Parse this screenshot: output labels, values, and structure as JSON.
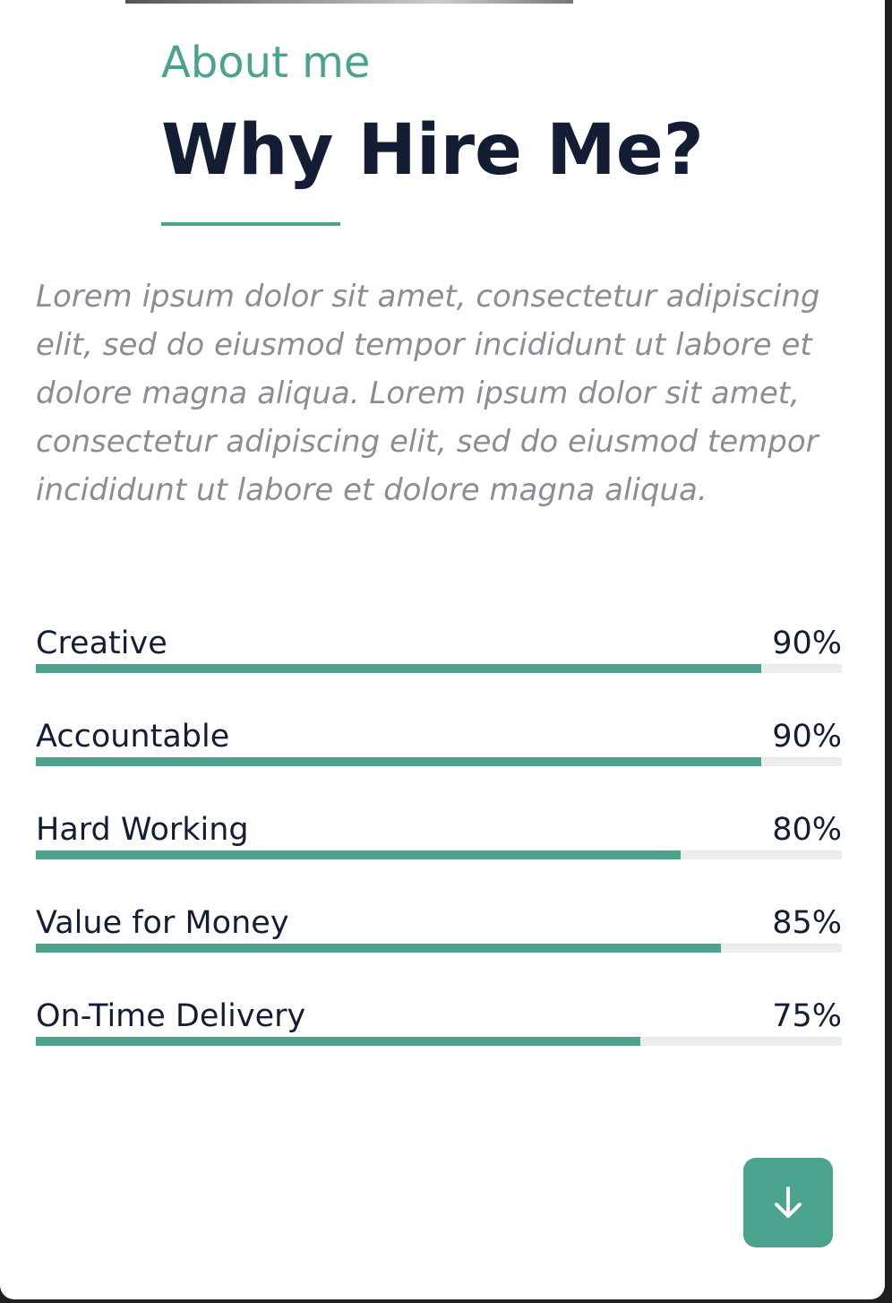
{
  "about": {
    "eyebrow": "About me",
    "headline": "Why Hire Me?",
    "intro": "Lorem ipsum dolor sit amet, consectetur adipiscing elit, sed do eiusmod tempor incididunt ut labore et dolore magna aliqua. Lorem ipsum dolor sit amet, consectetur adipiscing elit, sed do eiusmod tempor incididunt ut labore et dolore magna aliqua."
  },
  "skills": [
    {
      "name": "Creative",
      "percent_label": "90%",
      "value": 90
    },
    {
      "name": "Accountable",
      "percent_label": "90%",
      "value": 90
    },
    {
      "name": "Hard Working",
      "percent_label": "80%",
      "value": 80
    },
    {
      "name": "Value for Money",
      "percent_label": "85%",
      "value": 85
    },
    {
      "name": "On-Time Delivery",
      "percent_label": "75%",
      "value": 75
    }
  ],
  "scroll_button": {
    "icon": "arrow-down-icon"
  },
  "colors": {
    "accent": "#4aa38d",
    "heading": "#131d33",
    "muted_text": "#8a8d94",
    "track": "#ececec"
  }
}
